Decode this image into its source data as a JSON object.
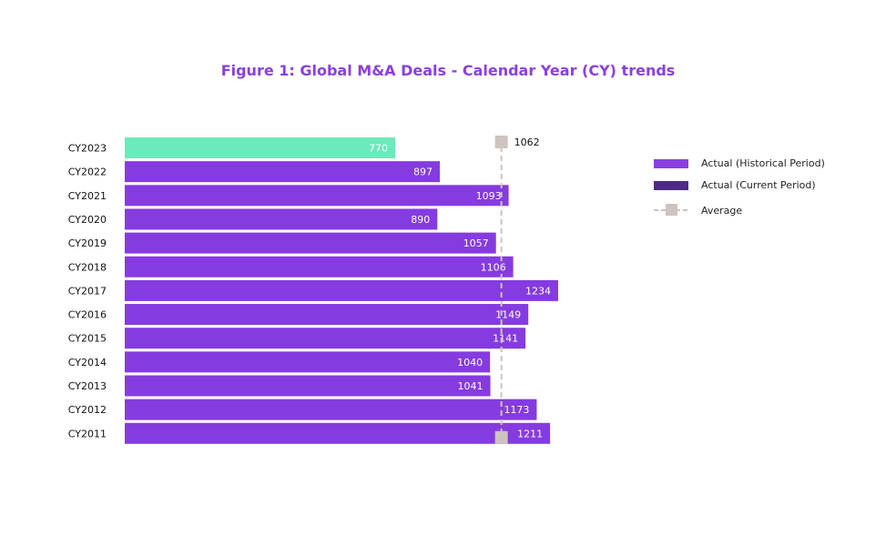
{
  "chart_data": {
    "type": "bar",
    "orientation": "horizontal",
    "title": "Figure 1: Global M&A Deals - Calendar Year (CY) trends",
    "categories": [
      "CY2023",
      "CY2022",
      "CY2021",
      "CY2020",
      "CY2019",
      "CY2018",
      "CY2017",
      "CY2016",
      "CY2015",
      "CY2014",
      "CY2013",
      "CY2012",
      "CY2011"
    ],
    "values": [
      770,
      897,
      1093,
      890,
      1057,
      1106,
      1234,
      1149,
      1141,
      1040,
      1041,
      1173,
      1211
    ],
    "highlight_category": "CY2023",
    "average": 1062,
    "average_label": "1062",
    "xlim": [
      0,
      1300
    ],
    "grid": false,
    "legend_position": "right",
    "legend": [
      {
        "label": "Actual (Historical Period)",
        "color": "#8a3fe0"
      },
      {
        "label": "Actual (Current Period)",
        "color": "#4e2a84"
      },
      {
        "label": "Average",
        "color": "#cdc3bf"
      }
    ],
    "colors": {
      "historical": "#853be0",
      "highlight": "#6ceabb",
      "average": "#cdc3bf"
    }
  }
}
